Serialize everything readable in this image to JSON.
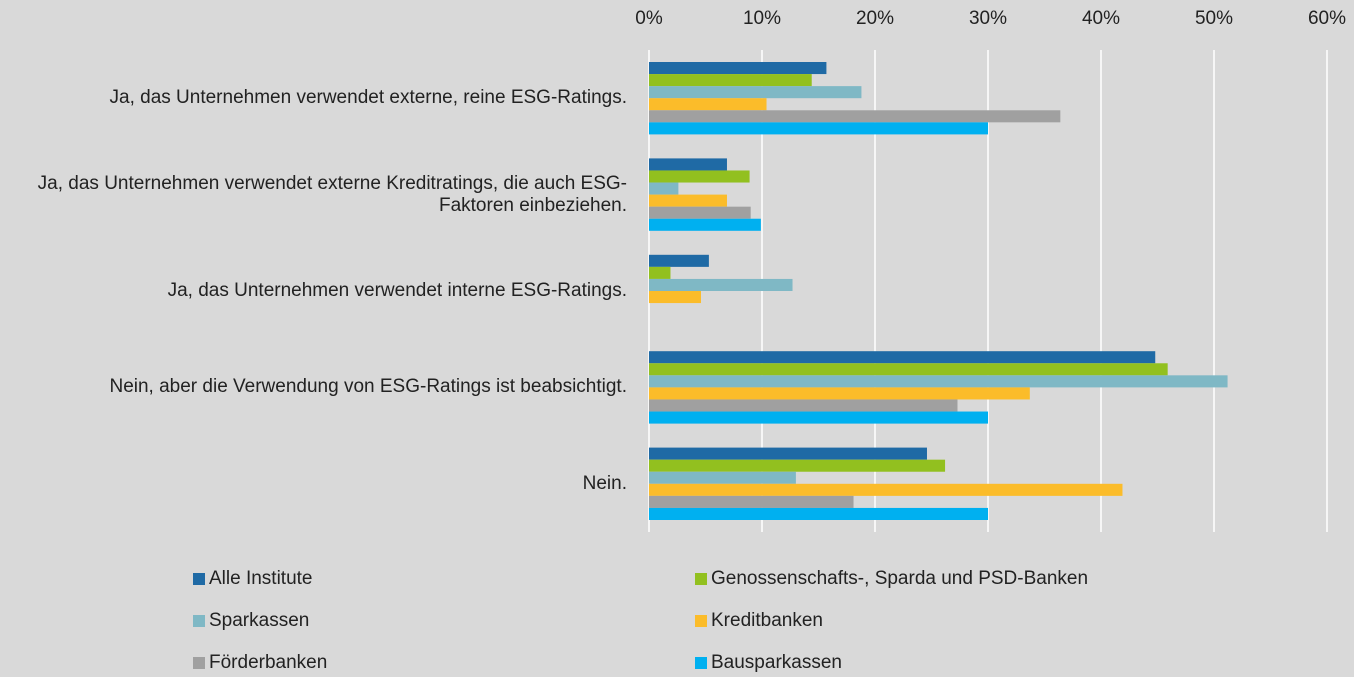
{
  "chart_data": {
    "type": "barh",
    "categories": [
      "Ja, das Unternehmen verwendet externe, reine ESG-Ratings.",
      "Ja, das Unternehmen verwendet externe Kreditratings, die auch ESG-Faktoren einbeziehen.",
      "Ja, das Unternehmen verwendet interne ESG-Ratings.",
      "Nein, aber die Verwendung von ESG-Ratings ist beabsichtigt.",
      "Nein."
    ],
    "series": [
      {
        "name": "Alle Institute",
        "color": "#1f6aa5",
        "values": [
          15.7,
          6.9,
          5.3,
          44.8,
          24.6
        ]
      },
      {
        "name": "Genossenschafts-, Sparda und PSD-Banken",
        "color": "#92c01f",
        "values": [
          14.4,
          8.9,
          1.9,
          45.9,
          26.2
        ]
      },
      {
        "name": "Sparkassen",
        "color": "#7fb8c5",
        "values": [
          18.8,
          2.6,
          12.7,
          51.2,
          13.0
        ]
      },
      {
        "name": "Kreditbanken",
        "color": "#fbbc2a",
        "values": [
          10.4,
          6.9,
          4.6,
          33.7,
          41.9
        ]
      },
      {
        "name": "Förderbanken",
        "color": "#a0a0a0",
        "values": [
          36.4,
          9.0,
          null,
          27.3,
          18.1
        ]
      },
      {
        "name": "Bausparkassen",
        "color": "#00b0f0",
        "values": [
          30.0,
          9.9,
          null,
          30.0,
          30.0
        ]
      }
    ],
    "xlim": [
      0,
      60
    ],
    "xticks": [
      {
        "value": 0,
        "label": "0%"
      },
      {
        "value": 10,
        "label": "10%"
      },
      {
        "value": 20,
        "label": "20%"
      },
      {
        "value": 30,
        "label": "30%"
      },
      {
        "value": 40,
        "label": "40%"
      },
      {
        "value": 50,
        "label": "50%"
      },
      {
        "value": 60,
        "label": "60%"
      }
    ],
    "grid": true
  }
}
